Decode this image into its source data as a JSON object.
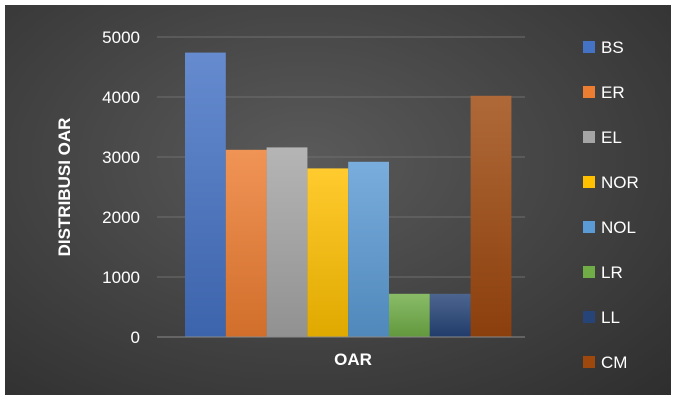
{
  "chart_data": {
    "type": "bar",
    "title": "",
    "xlabel": "OAR",
    "ylabel": "DISTRIBUSI OAR",
    "categories": [
      "OAR"
    ],
    "ylim": [
      0,
      5000
    ],
    "yticks": [
      0,
      1000,
      2000,
      3000,
      4000,
      5000
    ],
    "grid": true,
    "legend_position": "right",
    "background": "dark gradient",
    "series": [
      {
        "name": "BS",
        "values": [
          4740
        ],
        "color": "#4472C4"
      },
      {
        "name": "ER",
        "values": [
          3120
        ],
        "color": "#ED7D31"
      },
      {
        "name": "EL",
        "values": [
          3160
        ],
        "color": "#A5A5A5"
      },
      {
        "name": "NOR",
        "values": [
          2810
        ],
        "color": "#FFC000"
      },
      {
        "name": "NOL",
        "values": [
          2920
        ],
        "color": "#5B9BD5"
      },
      {
        "name": "LR",
        "values": [
          720
        ],
        "color": "#70AD47"
      },
      {
        "name": "LL",
        "values": [
          720
        ],
        "color": "#264478"
      },
      {
        "name": "CM",
        "values": [
          4020
        ],
        "color": "#9E480E"
      }
    ]
  }
}
